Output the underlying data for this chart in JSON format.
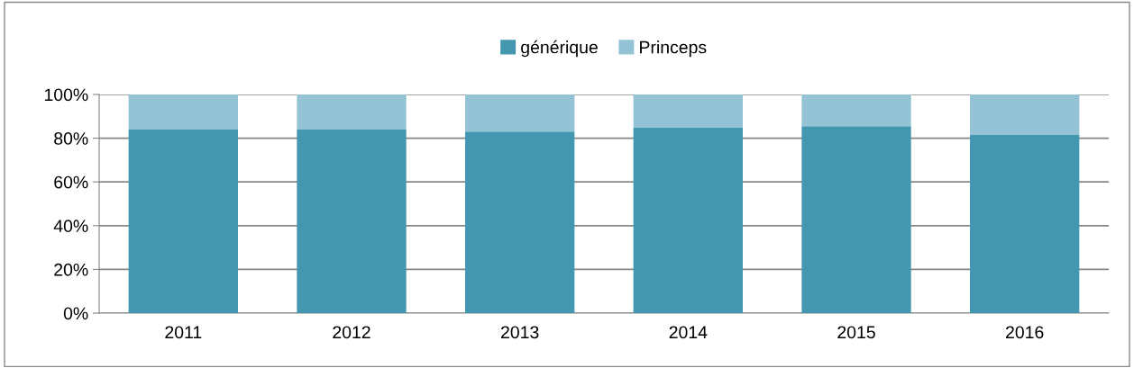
{
  "chart_data": {
    "type": "bar",
    "stacked": true,
    "categories": [
      "2011",
      "2012",
      "2013",
      "2014",
      "2015",
      "2016"
    ],
    "series": [
      {
        "name": "générique",
        "color": "#4398b0",
        "values": [
          84,
          84,
          83,
          85,
          85.5,
          81.5
        ]
      },
      {
        "name": "Princeps",
        "color": "#93c3d5",
        "values": [
          16,
          16,
          17,
          15,
          14.5,
          18.5
        ]
      }
    ],
    "ylim": [
      0,
      100
    ],
    "yticks": [
      {
        "value": 0,
        "label": "0%"
      },
      {
        "value": 20,
        "label": "20%"
      },
      {
        "value": 40,
        "label": "40%"
      },
      {
        "value": 60,
        "label": "60%"
      },
      {
        "value": 80,
        "label": "80%"
      },
      {
        "value": 100,
        "label": "100%"
      }
    ],
    "grid": "y",
    "legend": "top"
  }
}
